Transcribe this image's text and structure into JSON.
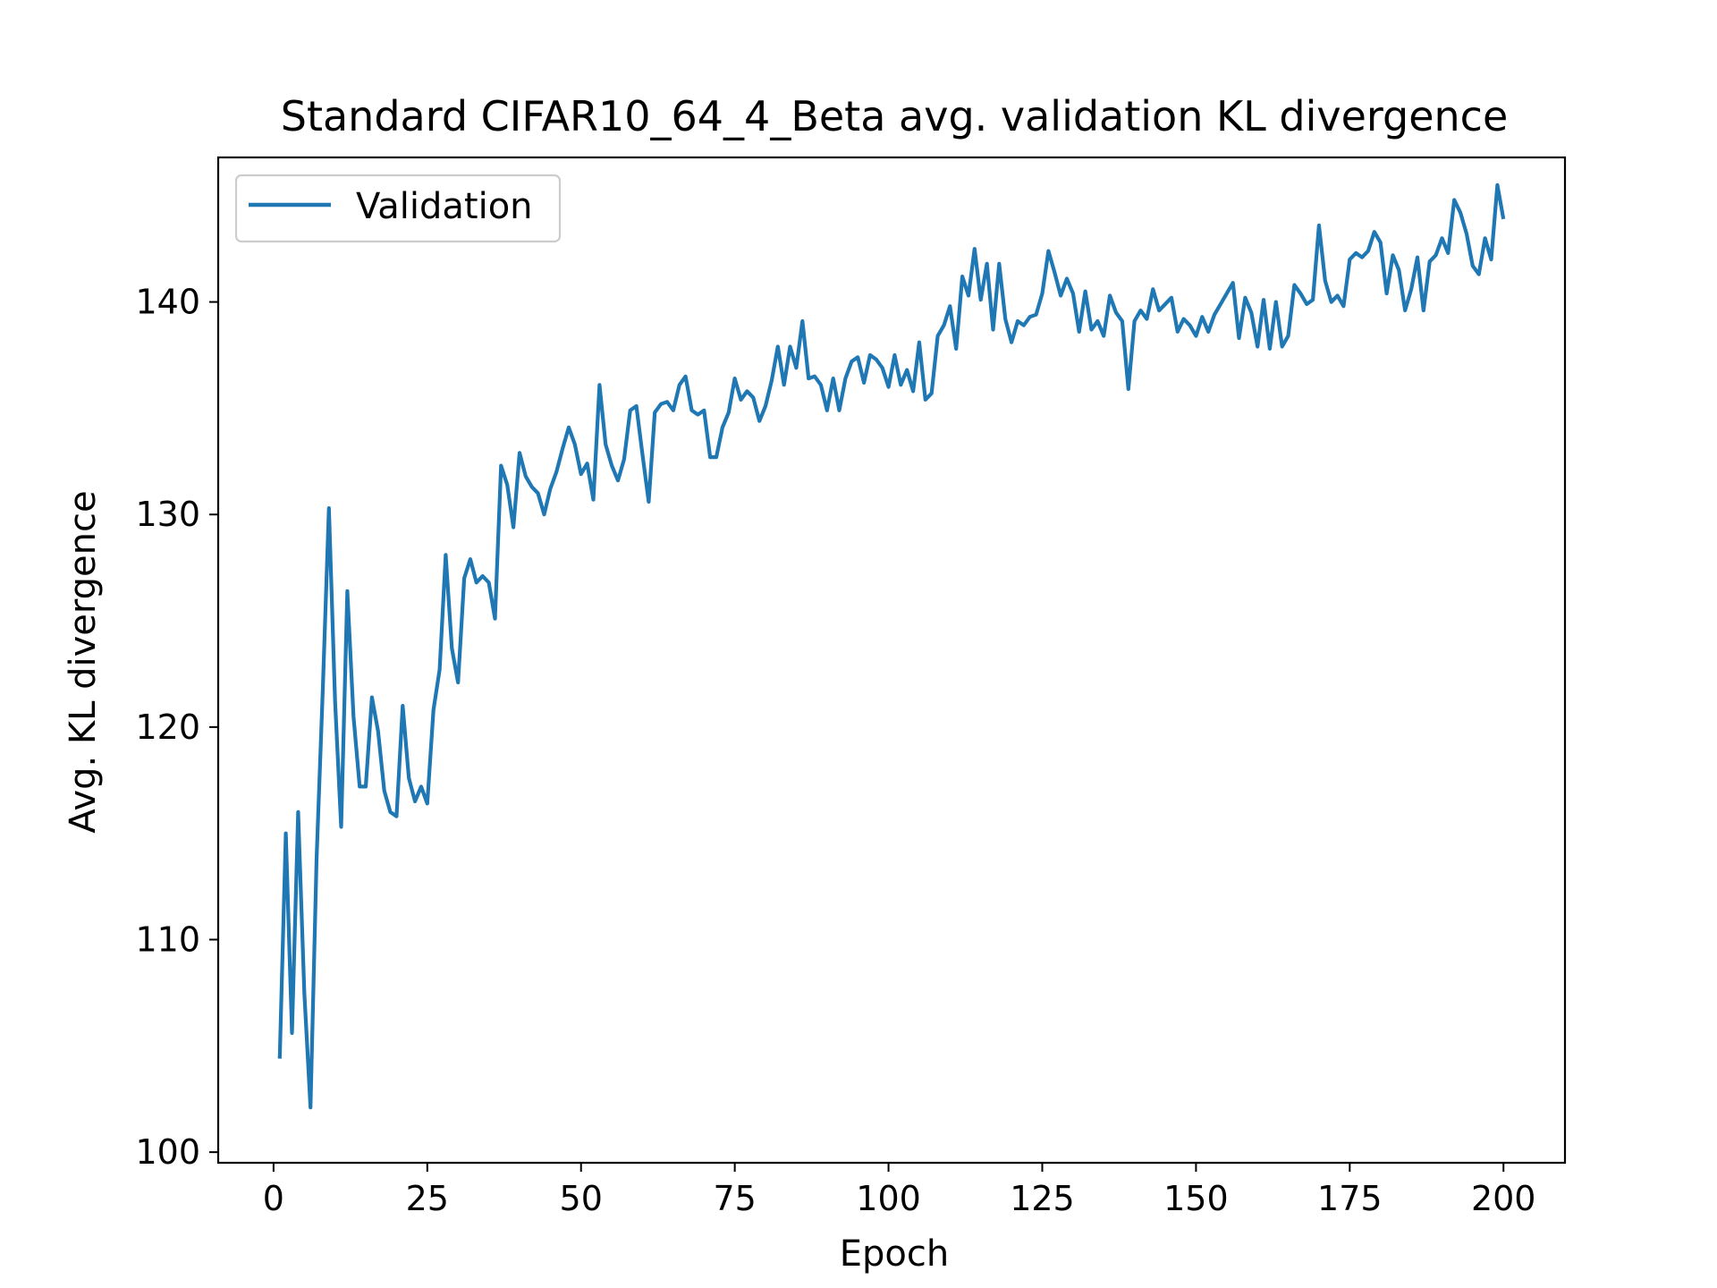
{
  "chart_data": {
    "type": "line",
    "title": "Standard CIFAR10_64_4_Beta avg. validation KL divergence",
    "xlabel": "Epoch",
    "ylabel": "Avg. KL divergence",
    "xlim": [
      -9,
      210
    ],
    "ylim": [
      99.5,
      146.8
    ],
    "xticks": [
      0,
      25,
      50,
      75,
      100,
      125,
      150,
      175,
      200
    ],
    "yticks": [
      100,
      110,
      120,
      130,
      140
    ],
    "grid": false,
    "legend_position": "top-left",
    "colors": {
      "series": "#1f77b4"
    },
    "series": [
      {
        "name": "Validation",
        "x": [
          1,
          2,
          3,
          4,
          5,
          6,
          7,
          8,
          9,
          10,
          11,
          12,
          13,
          14,
          15,
          16,
          17,
          18,
          19,
          20,
          21,
          22,
          23,
          24,
          25,
          26,
          27,
          28,
          29,
          30,
          31,
          32,
          33,
          34,
          35,
          36,
          37,
          38,
          39,
          40,
          41,
          42,
          43,
          44,
          45,
          46,
          47,
          48,
          49,
          50,
          51,
          52,
          53,
          54,
          55,
          56,
          57,
          58,
          59,
          60,
          61,
          62,
          63,
          64,
          65,
          66,
          67,
          68,
          69,
          70,
          71,
          72,
          73,
          74,
          75,
          76,
          77,
          78,
          79,
          80,
          81,
          82,
          83,
          84,
          85,
          86,
          87,
          88,
          89,
          90,
          91,
          92,
          93,
          94,
          95,
          96,
          97,
          98,
          99,
          100,
          101,
          102,
          103,
          104,
          105,
          106,
          107,
          108,
          109,
          110,
          111,
          112,
          113,
          114,
          115,
          116,
          117,
          118,
          119,
          120,
          121,
          122,
          123,
          124,
          125,
          126,
          127,
          128,
          129,
          130,
          131,
          132,
          133,
          134,
          135,
          136,
          137,
          138,
          139,
          140,
          141,
          142,
          143,
          144,
          145,
          146,
          147,
          148,
          149,
          150,
          151,
          152,
          153,
          154,
          155,
          156,
          157,
          158,
          159,
          160,
          161,
          162,
          163,
          164,
          165,
          166,
          167,
          168,
          169,
          170,
          171,
          172,
          173,
          174,
          175,
          176,
          177,
          178,
          179,
          180,
          181,
          182,
          183,
          184,
          185,
          186,
          187,
          188,
          189,
          190,
          191,
          192,
          193,
          194,
          195,
          196,
          197,
          198,
          199,
          200
        ],
        "values": [
          104.4,
          115.0,
          105.6,
          116.0,
          107.5,
          102.1,
          113.8,
          121.7,
          130.3,
          121.2,
          115.3,
          126.4,
          120.5,
          117.2,
          117.2,
          121.4,
          119.8,
          117.0,
          116.0,
          115.8,
          121.0,
          117.6,
          116.5,
          117.2,
          116.4,
          120.8,
          122.7,
          128.1,
          123.7,
          122.1,
          127.0,
          127.9,
          126.8,
          127.1,
          126.8,
          125.1,
          132.3,
          131.4,
          129.4,
          132.9,
          131.8,
          131.3,
          131.0,
          130.0,
          131.2,
          132.0,
          133.1,
          134.1,
          133.3,
          131.9,
          132.4,
          130.7,
          136.1,
          133.3,
          132.3,
          131.6,
          132.6,
          134.9,
          135.1,
          132.8,
          130.6,
          134.8,
          135.2,
          135.3,
          134.9,
          136.1,
          136.5,
          134.9,
          134.7,
          134.9,
          132.7,
          132.7,
          134.1,
          134.8,
          136.4,
          135.4,
          135.8,
          135.5,
          134.4,
          135.1,
          136.3,
          137.9,
          136.1,
          137.9,
          136.9,
          139.1,
          136.4,
          136.5,
          136.1,
          134.9,
          136.4,
          134.9,
          136.4,
          137.2,
          137.4,
          136.2,
          137.5,
          137.3,
          136.9,
          136.0,
          137.5,
          136.1,
          136.8,
          135.8,
          138.1,
          135.4,
          135.7,
          138.4,
          138.9,
          139.8,
          137.8,
          141.2,
          140.3,
          142.5,
          140.1,
          141.8,
          138.7,
          141.8,
          139.2,
          138.1,
          139.1,
          138.9,
          139.3,
          139.4,
          140.4,
          142.4,
          141.4,
          140.3,
          141.1,
          140.4,
          138.6,
          140.5,
          138.7,
          139.1,
          138.4,
          140.3,
          139.5,
          139.1,
          135.9,
          139.1,
          139.6,
          139.2,
          140.6,
          139.6,
          139.9,
          140.2,
          138.6,
          139.2,
          138.9,
          138.4,
          139.3,
          138.6,
          139.4,
          139.9,
          140.4,
          140.9,
          138.3,
          140.2,
          139.5,
          137.9,
          140.1,
          137.8,
          140.0,
          137.9,
          138.4,
          140.8,
          140.4,
          139.9,
          140.1,
          143.6,
          141.0,
          140.0,
          140.3,
          139.8,
          142.0,
          142.3,
          142.1,
          142.4,
          143.3,
          142.8,
          140.4,
          142.2,
          141.5,
          139.6,
          140.6,
          142.1,
          139.6,
          141.9,
          142.2,
          143.0,
          142.3,
          144.8,
          144.2,
          143.2,
          141.7,
          141.3,
          143.0,
          142.0,
          145.5,
          143.9
        ]
      }
    ]
  }
}
